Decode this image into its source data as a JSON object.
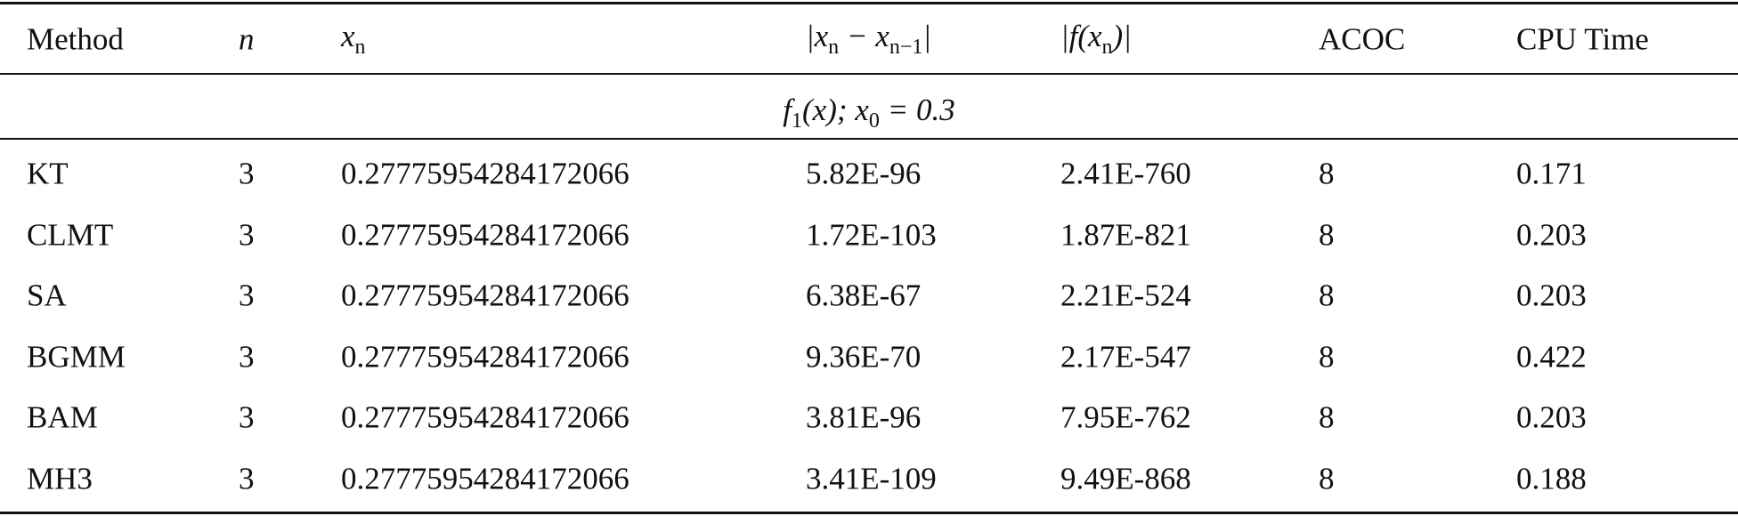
{
  "table": {
    "header": [
      [
        "Method"
      ],
      [
        "n"
      ],
      [
        "x",
        "n"
      ],
      [
        "|x",
        "n",
        " − x",
        "n−1",
        "|"
      ],
      [
        "|f(x",
        "n",
        ")|"
      ],
      [
        "ACOC"
      ],
      [
        "CPU Time"
      ]
    ],
    "section": [
      "f",
      "1",
      "(x); x",
      "0",
      " = 0.3"
    ],
    "rows": [
      [
        "KT",
        "3",
        "0.27775954284172066",
        "5.82E-96",
        "2.41E-760",
        "8",
        "0.171"
      ],
      [
        "CLMT",
        "3",
        "0.27775954284172066",
        "1.72E-103",
        "1.87E-821",
        "8",
        "0.203"
      ],
      [
        "SA",
        "3",
        "0.27775954284172066",
        "6.38E-67",
        "2.21E-524",
        "8",
        "0.203"
      ],
      [
        "BGMM",
        "3",
        "0.27775954284172066",
        "9.36E-70",
        "2.17E-547",
        "8",
        "0.422"
      ],
      [
        "BAM",
        "3",
        "0.27775954284172066",
        "3.81E-96",
        "7.95E-762",
        "8",
        "0.203"
      ],
      [
        "MH3",
        "3",
        "0.27775954284172066",
        "3.41E-109",
        "9.49E-868",
        "8",
        "0.188"
      ]
    ]
  }
}
